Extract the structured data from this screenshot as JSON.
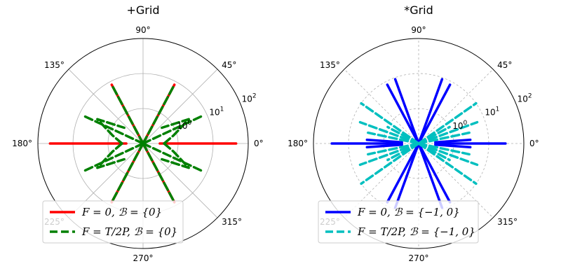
{
  "chart_data": [
    {
      "type": "line",
      "polar": true,
      "title": "+Grid",
      "radial_scale": "log",
      "rlim": [
        0.1,
        100
      ],
      "radial_tick_labels": [
        "10^0",
        "10^1",
        "10^2"
      ],
      "angle_tick_labels": [
        "0°",
        "45°",
        "90°",
        "135°",
        "180°",
        "225°",
        "270°",
        "315°"
      ],
      "grid": "solid",
      "legend_placement": "lower-left",
      "series": [
        {
          "name": "F = 0, ℬ = {0}",
          "color": "#ff0000",
          "linestyle": "solid",
          "segments": [
            [
              [
                0,
                0.3
              ],
              [
                0,
                45
              ]
            ],
            [
              [
                180,
                0.3
              ],
              [
                180,
                45
              ]
            ],
            [
              [
                62,
                0.1
              ],
              [
                62,
                8
              ]
            ],
            [
              [
                118,
                0.1
              ],
              [
                118,
                8
              ]
            ],
            [
              [
                242,
                0.1
              ],
              [
                242,
                8
              ]
            ],
            [
              [
                298,
                0.1
              ],
              [
                298,
                8
              ]
            ]
          ]
        },
        {
          "name": "F = T/2P, ℬ = {0}",
          "color": "#008000",
          "linestyle": "dashed",
          "segments": [
            [
              [
                62,
                0.1
              ],
              [
                62,
                8
              ]
            ],
            [
              [
                118,
                0.1
              ],
              [
                118,
                8
              ]
            ],
            [
              [
                242,
                0.1
              ],
              [
                242,
                8
              ]
            ],
            [
              [
                298,
                0.1
              ],
              [
                298,
                8
              ]
            ],
            [
              [
                25,
                0.1
              ],
              [
                25,
                7
              ]
            ],
            [
              [
                155,
                0.1
              ],
              [
                155,
                7
              ]
            ],
            [
              [
                205,
                0.1
              ],
              [
                205,
                7
              ]
            ],
            [
              [
                335,
                0.1
              ],
              [
                335,
                7
              ]
            ],
            [
              [
                0,
                0.4
              ],
              [
                15,
                0.8
              ],
              [
                28,
                3
              ],
              [
                40,
                0.5
              ]
            ],
            [
              [
                0,
                0.4
              ],
              [
                -15,
                0.8
              ],
              [
                -28,
                3
              ],
              [
                -40,
                0.5
              ]
            ],
            [
              [
                180,
                0.4
              ],
              [
                165,
                0.8
              ],
              [
                152,
                3
              ],
              [
                140,
                0.5
              ]
            ],
            [
              [
                180,
                0.4
              ],
              [
                195,
                0.8
              ],
              [
                208,
                3
              ],
              [
                220,
                0.5
              ]
            ]
          ]
        }
      ]
    },
    {
      "type": "line",
      "polar": true,
      "title": "*Grid",
      "radial_scale": "log",
      "rlim": [
        0.1,
        100
      ],
      "radial_tick_labels": [
        "10^0",
        "10^1",
        "10^2"
      ],
      "angle_tick_labels": [
        "0°",
        "45°",
        "90°",
        "135°",
        "180°",
        "225°",
        "270°",
        "315°"
      ],
      "grid": "dashed",
      "legend_placement": "lower-left",
      "series": [
        {
          "name": "F = 0, ℬ = {−1, 0}",
          "color": "#0000ff",
          "linestyle": "solid",
          "segments": [
            [
              [
                0,
                0.3
              ],
              [
                0,
                30
              ]
            ],
            [
              [
                180,
                0.3
              ],
              [
                180,
                30
              ]
            ],
            [
              [
                62,
                0.1
              ],
              [
                62,
                8
              ]
            ],
            [
              [
                118,
                0.1
              ],
              [
                118,
                8
              ]
            ],
            [
              [
                242,
                0.1
              ],
              [
                242,
                8
              ]
            ],
            [
              [
                298,
                0.1
              ],
              [
                298,
                8
              ]
            ],
            [
              [
                70,
                0.1
              ],
              [
                70,
                9
              ]
            ],
            [
              [
                110,
                0.1
              ],
              [
                110,
                9
              ]
            ],
            [
              [
                250,
                0.1
              ],
              [
                250,
                9
              ]
            ],
            [
              [
                290,
                0.1
              ],
              [
                290,
                9
              ]
            ],
            [
              [
                4,
                0.3
              ],
              [
                4,
                3
              ]
            ],
            [
              [
                176,
                0.3
              ],
              [
                176,
                3
              ]
            ],
            [
              [
                184,
                0.3
              ],
              [
                184,
                3
              ]
            ],
            [
              [
                356,
                0.3
              ],
              [
                356,
                3
              ]
            ]
          ]
        },
        {
          "name": "F = T/2P, ℬ = {−1, 0}",
          "color": "#00bfbf",
          "linestyle": "dashed",
          "segments": [
            [
              [
                35,
                0.1
              ],
              [
                35,
                10
              ]
            ],
            [
              [
                145,
                0.1
              ],
              [
                145,
                10
              ]
            ],
            [
              [
                215,
                0.1
              ],
              [
                215,
                10
              ]
            ],
            [
              [
                325,
                0.1
              ],
              [
                325,
                10
              ]
            ],
            [
              [
                20,
                0.1
              ],
              [
                20,
                6
              ]
            ],
            [
              [
                160,
                0.1
              ],
              [
                160,
                6
              ]
            ],
            [
              [
                200,
                0.1
              ],
              [
                200,
                6
              ]
            ],
            [
              [
                340,
                0.1
              ],
              [
                340,
                6
              ]
            ],
            [
              [
                12,
                0.1
              ],
              [
                12,
                3
              ]
            ],
            [
              [
                168,
                0.1
              ],
              [
                168,
                3
              ]
            ],
            [
              [
                192,
                0.1
              ],
              [
                192,
                3
              ]
            ],
            [
              [
                348,
                0.1
              ],
              [
                348,
                3
              ]
            ],
            [
              [
                28,
                0.1
              ],
              [
                28,
                1
              ]
            ],
            [
              [
                152,
                0.1
              ],
              [
                152,
                1
              ]
            ],
            [
              [
                208,
                0.1
              ],
              [
                208,
                1
              ]
            ],
            [
              [
                332,
                0.1
              ],
              [
                332,
                1
              ]
            ]
          ]
        }
      ]
    }
  ]
}
